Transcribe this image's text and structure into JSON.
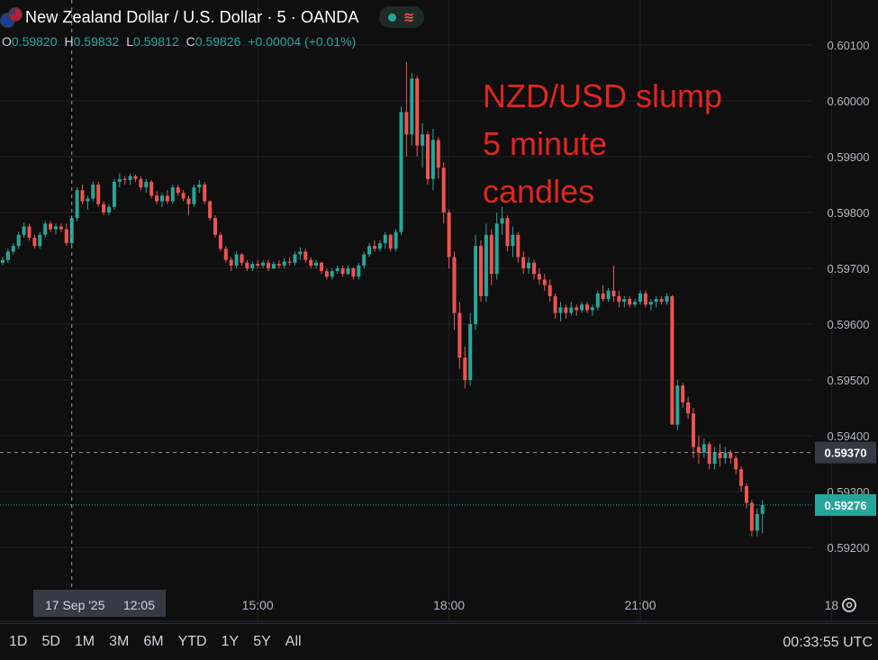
{
  "header": {
    "title": "New Zealand Dollar / U.S. Dollar · 5 · OANDA",
    "flag_icon": "nzd-usd-flag-icon",
    "status_icons": [
      "market-status-dot-icon",
      "bar-replay-icon"
    ],
    "colors": {
      "up": "#26a69a",
      "down": "#ef5350"
    }
  },
  "ohlc": {
    "o_label": "O",
    "o": "0.59820",
    "h_label": "H",
    "h": "0.59832",
    "l_label": "L",
    "l": "0.59812",
    "c_label": "C",
    "c": "0.59826",
    "change": "+0.00004 (+0.01%)"
  },
  "annotation": "NZD/USD slump\n5 minute\ncandles",
  "crosshair": {
    "date_label": "17 Sep '25",
    "time_label": "12:05",
    "price_label": "0.59370"
  },
  "last_price_label": "0.59276",
  "ranges": [
    "1D",
    "5D",
    "1M",
    "3M",
    "6M",
    "YTD",
    "1Y",
    "5Y",
    "All"
  ],
  "clock": "00:33:55 UTC",
  "settings_icon": "chart-settings-icon",
  "chart_data": {
    "type": "candlestick",
    "timeframe_minutes": 5,
    "ylim": [
      0.5913,
      0.6011
    ],
    "yticks": [
      "0.59200",
      "0.59300",
      "0.59400",
      "0.59500",
      "0.59600",
      "0.59700",
      "0.59800",
      "0.59900",
      "0.60000",
      "0.60100"
    ],
    "xticks": [
      "15:00",
      "18:00",
      "21:00",
      "18"
    ],
    "grid": true,
    "candles": [
      [
        "11:00",
        0.5971,
        0.5972,
        0.59705,
        0.59715
      ],
      [
        "11:05",
        0.59715,
        0.59735,
        0.5971,
        0.5973
      ],
      [
        "11:10",
        0.5973,
        0.59745,
        0.59725,
        0.5974
      ],
      [
        "11:15",
        0.5974,
        0.59765,
        0.59735,
        0.5976
      ],
      [
        "11:20",
        0.5976,
        0.59782,
        0.59755,
        0.59775
      ],
      [
        "11:25",
        0.59775,
        0.5978,
        0.5975,
        0.59755
      ],
      [
        "11:30",
        0.59755,
        0.5976,
        0.59735,
        0.5974
      ],
      [
        "11:35",
        0.5974,
        0.59765,
        0.59735,
        0.5976
      ],
      [
        "11:40",
        0.5976,
        0.59785,
        0.59755,
        0.5978
      ],
      [
        "11:45",
        0.5978,
        0.59785,
        0.59765,
        0.5977
      ],
      [
        "11:50",
        0.5977,
        0.5978,
        0.5976,
        0.59775
      ],
      [
        "11:55",
        0.59775,
        0.5978,
        0.59765,
        0.5977
      ],
      [
        "12:00",
        0.5977,
        0.5978,
        0.5974,
        0.59745
      ],
      [
        "12:05",
        0.59745,
        0.59795,
        0.5974,
        0.5979
      ],
      [
        "12:10",
        0.5979,
        0.59845,
        0.59785,
        0.5984
      ],
      [
        "12:15",
        0.5984,
        0.5985,
        0.59815,
        0.5982
      ],
      [
        "12:20",
        0.5982,
        0.5983,
        0.59805,
        0.59825
      ],
      [
        "12:25",
        0.59825,
        0.59855,
        0.5982,
        0.5985
      ],
      [
        "12:30",
        0.5985,
        0.59855,
        0.5981,
        0.59815
      ],
      [
        "12:35",
        0.59815,
        0.5982,
        0.59795,
        0.598
      ],
      [
        "12:40",
        0.598,
        0.59815,
        0.59795,
        0.5981
      ],
      [
        "12:45",
        0.5981,
        0.5986,
        0.59805,
        0.59855
      ],
      [
        "12:50",
        0.59855,
        0.5987,
        0.59845,
        0.5986
      ],
      [
        "12:55",
        0.5986,
        0.59865,
        0.5985,
        0.59858
      ],
      [
        "13:00",
        0.59858,
        0.5987,
        0.5985,
        0.59865
      ],
      [
        "13:05",
        0.59865,
        0.59868,
        0.59855,
        0.5986
      ],
      [
        "13:10",
        0.5986,
        0.59865,
        0.5984,
        0.59845
      ],
      [
        "13:15",
        0.59845,
        0.5986,
        0.59835,
        0.59855
      ],
      [
        "13:20",
        0.59855,
        0.59858,
        0.59825,
        0.5983
      ],
      [
        "13:25",
        0.5983,
        0.59838,
        0.59815,
        0.5982
      ],
      [
        "13:30",
        0.5982,
        0.59835,
        0.5981,
        0.5983
      ],
      [
        "13:35",
        0.5983,
        0.5984,
        0.59815,
        0.5982
      ],
      [
        "13:40",
        0.5982,
        0.5985,
        0.59815,
        0.59845
      ],
      [
        "13:45",
        0.59845,
        0.5985,
        0.5983,
        0.59835
      ],
      [
        "13:50",
        0.59835,
        0.5984,
        0.5982,
        0.59825
      ],
      [
        "13:55",
        0.59825,
        0.5983,
        0.59795,
        0.59815
      ],
      [
        "14:00",
        0.59815,
        0.5985,
        0.5981,
        0.59845
      ],
      [
        "14:05",
        0.59845,
        0.59858,
        0.59835,
        0.5985
      ],
      [
        "14:10",
        0.5985,
        0.59855,
        0.59815,
        0.5982
      ],
      [
        "14:15",
        0.5982,
        0.59822,
        0.59785,
        0.5979
      ],
      [
        "14:20",
        0.5979,
        0.59795,
        0.59755,
        0.5976
      ],
      [
        "14:25",
        0.5976,
        0.59765,
        0.5973,
        0.59735
      ],
      [
        "14:30",
        0.59735,
        0.5974,
        0.5971,
        0.59715
      ],
      [
        "14:35",
        0.59715,
        0.5972,
        0.59695,
        0.59705
      ],
      [
        "14:40",
        0.59705,
        0.5973,
        0.597,
        0.59725
      ],
      [
        "14:45",
        0.59725,
        0.59728,
        0.59705,
        0.5971
      ],
      [
        "14:50",
        0.5971,
        0.59715,
        0.59695,
        0.597
      ],
      [
        "14:55",
        0.597,
        0.59712,
        0.59695,
        0.59708
      ],
      [
        "15:00",
        0.59708,
        0.59715,
        0.597,
        0.59705
      ],
      [
        "15:05",
        0.59705,
        0.59715,
        0.597,
        0.5971
      ],
      [
        "15:10",
        0.5971,
        0.59715,
        0.59695,
        0.597
      ],
      [
        "15:15",
        0.597,
        0.59712,
        0.59698,
        0.59708
      ],
      [
        "15:20",
        0.59708,
        0.59715,
        0.597,
        0.59705
      ],
      [
        "15:25",
        0.59705,
        0.59718,
        0.597,
        0.59712
      ],
      [
        "15:30",
        0.59712,
        0.5972,
        0.59705,
        0.5971
      ],
      [
        "15:35",
        0.5971,
        0.5973,
        0.59705,
        0.59725
      ],
      [
        "15:40",
        0.59725,
        0.59738,
        0.59715,
        0.5973
      ],
      [
        "15:45",
        0.5973,
        0.59735,
        0.5971,
        0.59715
      ],
      [
        "15:50",
        0.59715,
        0.5972,
        0.597,
        0.59705
      ],
      [
        "15:55",
        0.59705,
        0.59715,
        0.597,
        0.5971
      ],
      [
        "16:00",
        0.5971,
        0.59712,
        0.5969,
        0.59695
      ],
      [
        "16:05",
        0.59695,
        0.597,
        0.5968,
        0.59685
      ],
      [
        "16:10",
        0.59685,
        0.597,
        0.5968,
        0.59695
      ],
      [
        "16:15",
        0.59695,
        0.59705,
        0.5969,
        0.597
      ],
      [
        "16:20",
        0.597,
        0.59705,
        0.59685,
        0.5969
      ],
      [
        "16:25",
        0.5969,
        0.59705,
        0.59688,
        0.597
      ],
      [
        "16:30",
        0.597,
        0.59702,
        0.5968,
        0.59685
      ],
      [
        "16:35",
        0.59685,
        0.5971,
        0.5968,
        0.59705
      ],
      [
        "16:40",
        0.59705,
        0.5973,
        0.597,
        0.59725
      ],
      [
        "16:45",
        0.59725,
        0.59745,
        0.5972,
        0.5974
      ],
      [
        "16:50",
        0.5974,
        0.5975,
        0.5973,
        0.59735
      ],
      [
        "16:55",
        0.59735,
        0.5975,
        0.5973,
        0.59745
      ],
      [
        "17:00",
        0.59745,
        0.59765,
        0.59735,
        0.5976
      ],
      [
        "17:05",
        0.5976,
        0.59762,
        0.5973,
        0.59735
      ],
      [
        "17:10",
        0.59735,
        0.5977,
        0.5973,
        0.59765
      ],
      [
        "17:15",
        0.59765,
        0.5999,
        0.5976,
        0.5998
      ],
      [
        "17:20",
        0.5998,
        0.6007,
        0.599,
        0.5994
      ],
      [
        "17:25",
        0.5994,
        0.6005,
        0.5992,
        0.6004
      ],
      [
        "17:30",
        0.6004,
        0.60045,
        0.599,
        0.5992
      ],
      [
        "17:35",
        0.5992,
        0.5996,
        0.5988,
        0.5994
      ],
      [
        "17:40",
        0.5994,
        0.59945,
        0.5985,
        0.5986
      ],
      [
        "17:45",
        0.5986,
        0.5995,
        0.5984,
        0.5993
      ],
      [
        "17:50",
        0.5993,
        0.59935,
        0.5986,
        0.5988
      ],
      [
        "17:55",
        0.5988,
        0.5989,
        0.5978,
        0.598
      ],
      [
        "18:00",
        0.598,
        0.59805,
        0.597,
        0.5972
      ],
      [
        "18:05",
        0.5972,
        0.5973,
        0.5959,
        0.5962
      ],
      [
        "18:10",
        0.5962,
        0.5964,
        0.5952,
        0.5954
      ],
      [
        "18:15",
        0.5954,
        0.5956,
        0.59485,
        0.595
      ],
      [
        "18:20",
        0.595,
        0.5962,
        0.5949,
        0.596
      ],
      [
        "18:25",
        0.596,
        0.5976,
        0.5959,
        0.5974
      ],
      [
        "18:30",
        0.5974,
        0.5975,
        0.5964,
        0.5965
      ],
      [
        "18:35",
        0.5965,
        0.5978,
        0.5964,
        0.5976
      ],
      [
        "18:40",
        0.5976,
        0.5977,
        0.5967,
        0.5969
      ],
      [
        "18:45",
        0.5969,
        0.598,
        0.5968,
        0.5978
      ],
      [
        "18:50",
        0.5978,
        0.5981,
        0.5976,
        0.5979
      ],
      [
        "18:55",
        0.5979,
        0.59795,
        0.5973,
        0.5974
      ],
      [
        "19:00",
        0.5974,
        0.59775,
        0.5972,
        0.5976
      ],
      [
        "19:05",
        0.5976,
        0.59765,
        0.5971,
        0.5972
      ],
      [
        "19:10",
        0.5972,
        0.5973,
        0.5969,
        0.597
      ],
      [
        "19:15",
        0.597,
        0.5972,
        0.5969,
        0.5971
      ],
      [
        "19:20",
        0.5971,
        0.59715,
        0.5968,
        0.5969
      ],
      [
        "19:25",
        0.5969,
        0.597,
        0.5967,
        0.5968
      ],
      [
        "19:30",
        0.5968,
        0.5969,
        0.5966,
        0.5967
      ],
      [
        "19:35",
        0.5967,
        0.5968,
        0.5964,
        0.5965
      ],
      [
        "19:40",
        0.5965,
        0.59655,
        0.5961,
        0.5962
      ],
      [
        "19:45",
        0.5962,
        0.5964,
        0.59605,
        0.5963
      ],
      [
        "19:50",
        0.5963,
        0.59635,
        0.5961,
        0.5962
      ],
      [
        "19:55",
        0.5962,
        0.5964,
        0.59615,
        0.5963
      ],
      [
        "20:00",
        0.5963,
        0.59635,
        0.59615,
        0.59625
      ],
      [
        "20:05",
        0.59625,
        0.5964,
        0.5962,
        0.59635
      ],
      [
        "20:10",
        0.59635,
        0.5964,
        0.5962,
        0.59625
      ],
      [
        "20:15",
        0.59625,
        0.59635,
        0.59615,
        0.5963
      ],
      [
        "20:20",
        0.5963,
        0.5966,
        0.59625,
        0.59655
      ],
      [
        "20:25",
        0.59655,
        0.5967,
        0.5964,
        0.59645
      ],
      [
        "20:30",
        0.59645,
        0.59665,
        0.5964,
        0.5966
      ],
      [
        "20:35",
        0.5966,
        0.59705,
        0.5964,
        0.5965
      ],
      [
        "20:40",
        0.5965,
        0.5966,
        0.5963,
        0.5964
      ],
      [
        "20:45",
        0.5964,
        0.5965,
        0.5963,
        0.59645
      ],
      [
        "20:50",
        0.59645,
        0.5965,
        0.5963,
        0.59635
      ],
      [
        "20:55",
        0.59635,
        0.59645,
        0.5963,
        0.5964
      ],
      [
        "21:00",
        0.5964,
        0.5966,
        0.59635,
        0.59655
      ],
      [
        "21:05",
        0.59655,
        0.5966,
        0.5963,
        0.59635
      ],
      [
        "21:10",
        0.59635,
        0.59645,
        0.59625,
        0.5964
      ],
      [
        "21:15",
        0.5964,
        0.5965,
        0.5963,
        0.59645
      ],
      [
        "21:20",
        0.59645,
        0.5965,
        0.59635,
        0.5964
      ],
      [
        "21:25",
        0.5964,
        0.59655,
        0.59635,
        0.5965
      ],
      [
        "21:30",
        0.5965,
        0.59652,
        0.5942,
        0.5942
      ],
      [
        "21:35",
        0.5942,
        0.595,
        0.5941,
        0.5949
      ],
      [
        "21:40",
        0.5949,
        0.59495,
        0.5945,
        0.5946
      ],
      [
        "21:45",
        0.5946,
        0.5947,
        0.5943,
        0.5944
      ],
      [
        "21:50",
        0.5944,
        0.5945,
        0.5936,
        0.5938
      ],
      [
        "21:55",
        0.5938,
        0.594,
        0.5935,
        0.5937
      ],
      [
        "22:00",
        0.5937,
        0.59395,
        0.5936,
        0.59385
      ],
      [
        "22:05",
        0.59385,
        0.5939,
        0.5934,
        0.5935
      ],
      [
        "22:10",
        0.5935,
        0.5938,
        0.5934,
        0.5937
      ],
      [
        "22:15",
        0.5937,
        0.59385,
        0.59345,
        0.5936
      ],
      [
        "22:20",
        0.5936,
        0.5938,
        0.5935,
        0.5937
      ],
      [
        "22:25",
        0.5937,
        0.59375,
        0.5935,
        0.5936
      ],
      [
        "22:30",
        0.5936,
        0.59365,
        0.5933,
        0.5934
      ],
      [
        "22:35",
        0.5934,
        0.59345,
        0.593,
        0.5931
      ],
      [
        "22:40",
        0.5931,
        0.59315,
        0.5927,
        0.5928
      ],
      [
        "22:45",
        0.5928,
        0.59285,
        0.5922,
        0.5923
      ],
      [
        "22:50",
        0.5923,
        0.5927,
        0.5922,
        0.5926
      ],
      [
        "22:55",
        0.5926,
        0.59285,
        0.59225,
        0.59276
      ]
    ]
  }
}
